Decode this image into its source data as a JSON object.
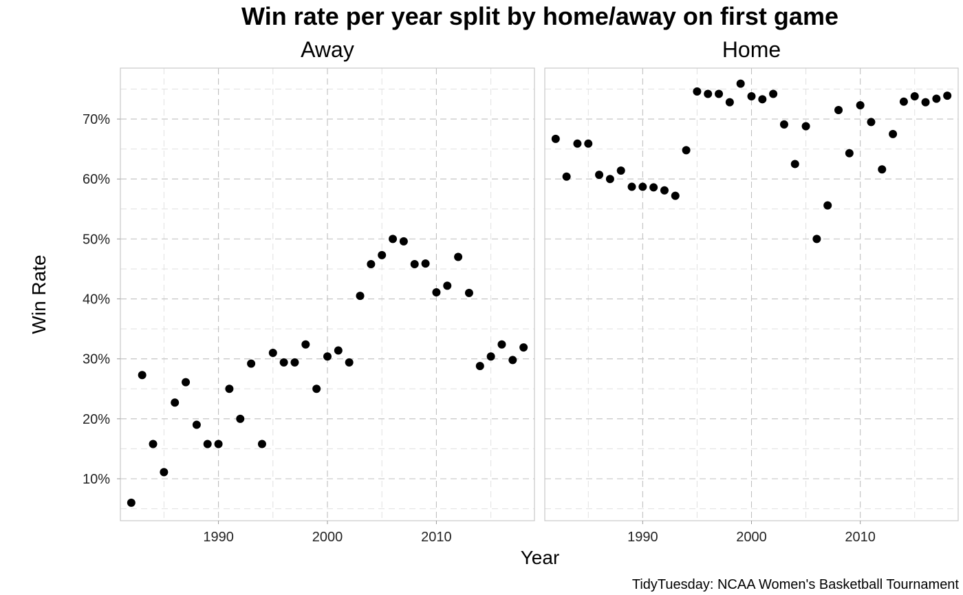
{
  "chart_data": {
    "type": "scatter",
    "title": "Win rate per year split by home/away on first game",
    "xlabel": "Year",
    "ylabel": "Win Rate",
    "caption": "TidyTuesday: NCAA Women's Basketball Tournament",
    "xlim": [
      1981,
      2019
    ],
    "ylim": [
      3.0,
      78.5
    ],
    "x_ticks": [
      1990,
      2000,
      2010
    ],
    "x_tick_labels": [
      "1990",
      "2000",
      "2010"
    ],
    "y_ticks": [
      10,
      20,
      30,
      40,
      50,
      60,
      70
    ],
    "y_tick_labels": [
      "10%",
      "20%",
      "30%",
      "40%",
      "50%",
      "60%",
      "70%"
    ],
    "grid": true,
    "panels": [
      {
        "name": "Away",
        "points": [
          {
            "x": 1982,
            "y": 6.0
          },
          {
            "x": 1983,
            "y": 27.3
          },
          {
            "x": 1984,
            "y": 15.8
          },
          {
            "x": 1985,
            "y": 11.1
          },
          {
            "x": 1986,
            "y": 22.7
          },
          {
            "x": 1987,
            "y": 26.1
          },
          {
            "x": 1988,
            "y": 19.0
          },
          {
            "x": 1989,
            "y": 15.8
          },
          {
            "x": 1990,
            "y": 15.8
          },
          {
            "x": 1991,
            "y": 25.0
          },
          {
            "x": 1992,
            "y": 20.0
          },
          {
            "x": 1993,
            "y": 29.2
          },
          {
            "x": 1994,
            "y": 15.8
          },
          {
            "x": 1995,
            "y": 31.0
          },
          {
            "x": 1996,
            "y": 29.4
          },
          {
            "x": 1997,
            "y": 29.4
          },
          {
            "x": 1998,
            "y": 32.4
          },
          {
            "x": 1999,
            "y": 25.0
          },
          {
            "x": 2000,
            "y": 30.4
          },
          {
            "x": 2001,
            "y": 31.4
          },
          {
            "x": 2002,
            "y": 29.4
          },
          {
            "x": 2003,
            "y": 40.5
          },
          {
            "x": 2004,
            "y": 45.8
          },
          {
            "x": 2005,
            "y": 47.3
          },
          {
            "x": 2006,
            "y": 50.0
          },
          {
            "x": 2007,
            "y": 49.6
          },
          {
            "x": 2008,
            "y": 45.8
          },
          {
            "x": 2009,
            "y": 45.9
          },
          {
            "x": 2010,
            "y": 41.1
          },
          {
            "x": 2011,
            "y": 42.2
          },
          {
            "x": 2012,
            "y": 47.0
          },
          {
            "x": 2013,
            "y": 41.0
          },
          {
            "x": 2014,
            "y": 28.8
          },
          {
            "x": 2015,
            "y": 30.4
          },
          {
            "x": 2016,
            "y": 32.4
          },
          {
            "x": 2017,
            "y": 29.8
          },
          {
            "x": 2018,
            "y": 31.9
          }
        ]
      },
      {
        "name": "Home",
        "points": [
          {
            "x": 1982,
            "y": 66.7
          },
          {
            "x": 1983,
            "y": 60.4
          },
          {
            "x": 1984,
            "y": 65.9
          },
          {
            "x": 1985,
            "y": 65.9
          },
          {
            "x": 1986,
            "y": 60.7
          },
          {
            "x": 1987,
            "y": 60.0
          },
          {
            "x": 1988,
            "y": 61.4
          },
          {
            "x": 1989,
            "y": 58.7
          },
          {
            "x": 1990,
            "y": 58.7
          },
          {
            "x": 1991,
            "y": 58.6
          },
          {
            "x": 1992,
            "y": 58.1
          },
          {
            "x": 1993,
            "y": 57.2
          },
          {
            "x": 1994,
            "y": 64.8
          },
          {
            "x": 1995,
            "y": 74.6
          },
          {
            "x": 1996,
            "y": 74.2
          },
          {
            "x": 1997,
            "y": 74.2
          },
          {
            "x": 1998,
            "y": 72.8
          },
          {
            "x": 1999,
            "y": 75.9
          },
          {
            "x": 2000,
            "y": 73.8
          },
          {
            "x": 2001,
            "y": 73.3
          },
          {
            "x": 2002,
            "y": 74.2
          },
          {
            "x": 2003,
            "y": 69.1
          },
          {
            "x": 2004,
            "y": 62.5
          },
          {
            "x": 2005,
            "y": 68.8
          },
          {
            "x": 2006,
            "y": 50.0
          },
          {
            "x": 2007,
            "y": 55.6
          },
          {
            "x": 2008,
            "y": 71.5
          },
          {
            "x": 2009,
            "y": 64.3
          },
          {
            "x": 2010,
            "y": 72.3
          },
          {
            "x": 2011,
            "y": 69.5
          },
          {
            "x": 2012,
            "y": 61.6
          },
          {
            "x": 2013,
            "y": 67.5
          },
          {
            "x": 2014,
            "y": 72.9
          },
          {
            "x": 2015,
            "y": 73.8
          },
          {
            "x": 2016,
            "y": 72.8
          },
          {
            "x": 2017,
            "y": 73.4
          },
          {
            "x": 2018,
            "y": 73.9
          }
        ]
      }
    ]
  }
}
